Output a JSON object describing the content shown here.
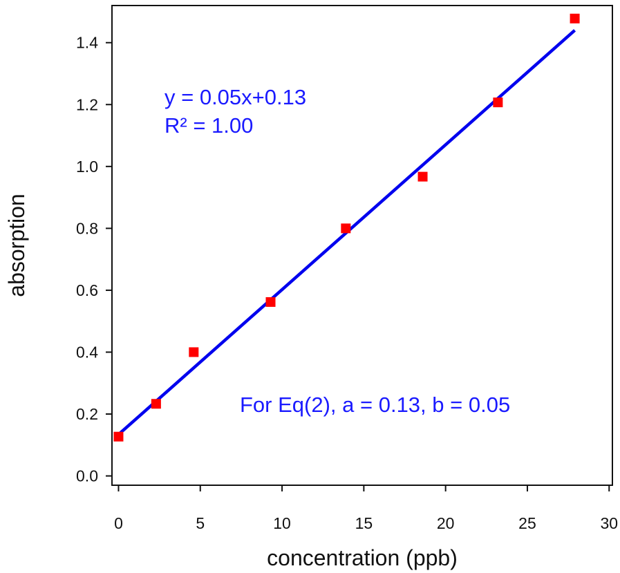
{
  "chart_data": {
    "type": "scatter",
    "title": "",
    "xlabel": "concentration (ppb)",
    "ylabel": "absorption",
    "xlim": [
      -0.4,
      30.2
    ],
    "ylim": [
      -0.03,
      1.52
    ],
    "xticks": [
      0,
      5,
      10,
      15,
      20,
      25,
      30
    ],
    "yticks": [
      0.0,
      0.2,
      0.4,
      0.6,
      0.8,
      1.0,
      1.2,
      1.4
    ],
    "xtick_labels": [
      "0",
      "5",
      "10",
      "15",
      "20",
      "25",
      "30"
    ],
    "ytick_labels": [
      "0.0",
      "0.2",
      "0.4",
      "0.6",
      "0.8",
      "1.0",
      "1.2",
      "1.4"
    ],
    "grid": false,
    "series": [
      {
        "type": "scatter",
        "color": "#ff0000",
        "marker": "square",
        "x": [
          0.0,
          2.3,
          4.6,
          9.3,
          13.9,
          18.6,
          23.2,
          27.9
        ],
        "y": [
          0.127,
          0.233,
          0.4,
          0.562,
          0.8,
          0.967,
          1.207,
          1.478
        ]
      },
      {
        "type": "line",
        "color": "#0000ee",
        "x": [
          0.0,
          27.9
        ],
        "y": [
          0.134,
          1.44
        ]
      }
    ],
    "annotations": [
      {
        "id": "equation",
        "text": "y = 0.05x+0.13"
      },
      {
        "id": "r2",
        "text": "R² = 1.00"
      },
      {
        "id": "eq2",
        "text": "For Eq(2), a = 0.13, b = 0.05"
      }
    ]
  }
}
